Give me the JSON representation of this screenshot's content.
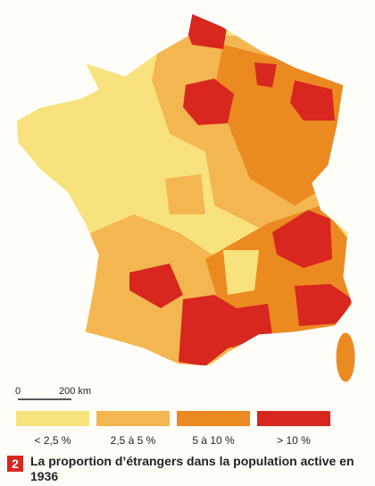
{
  "figure_number": "2",
  "caption": "La proportion d’étrangers dans la population active en 1936",
  "scale": {
    "start": "0",
    "end": "200 km"
  },
  "legend": [
    {
      "label": "< 2,5 %",
      "color": "#f8e27e"
    },
    {
      "label": "2,5 à 5 %",
      "color": "#f3b650"
    },
    {
      "label": "5 à 10 %",
      "color": "#ec8a22"
    },
    {
      "label": "> 10 %",
      "color": "#d8271e"
    }
  ]
}
